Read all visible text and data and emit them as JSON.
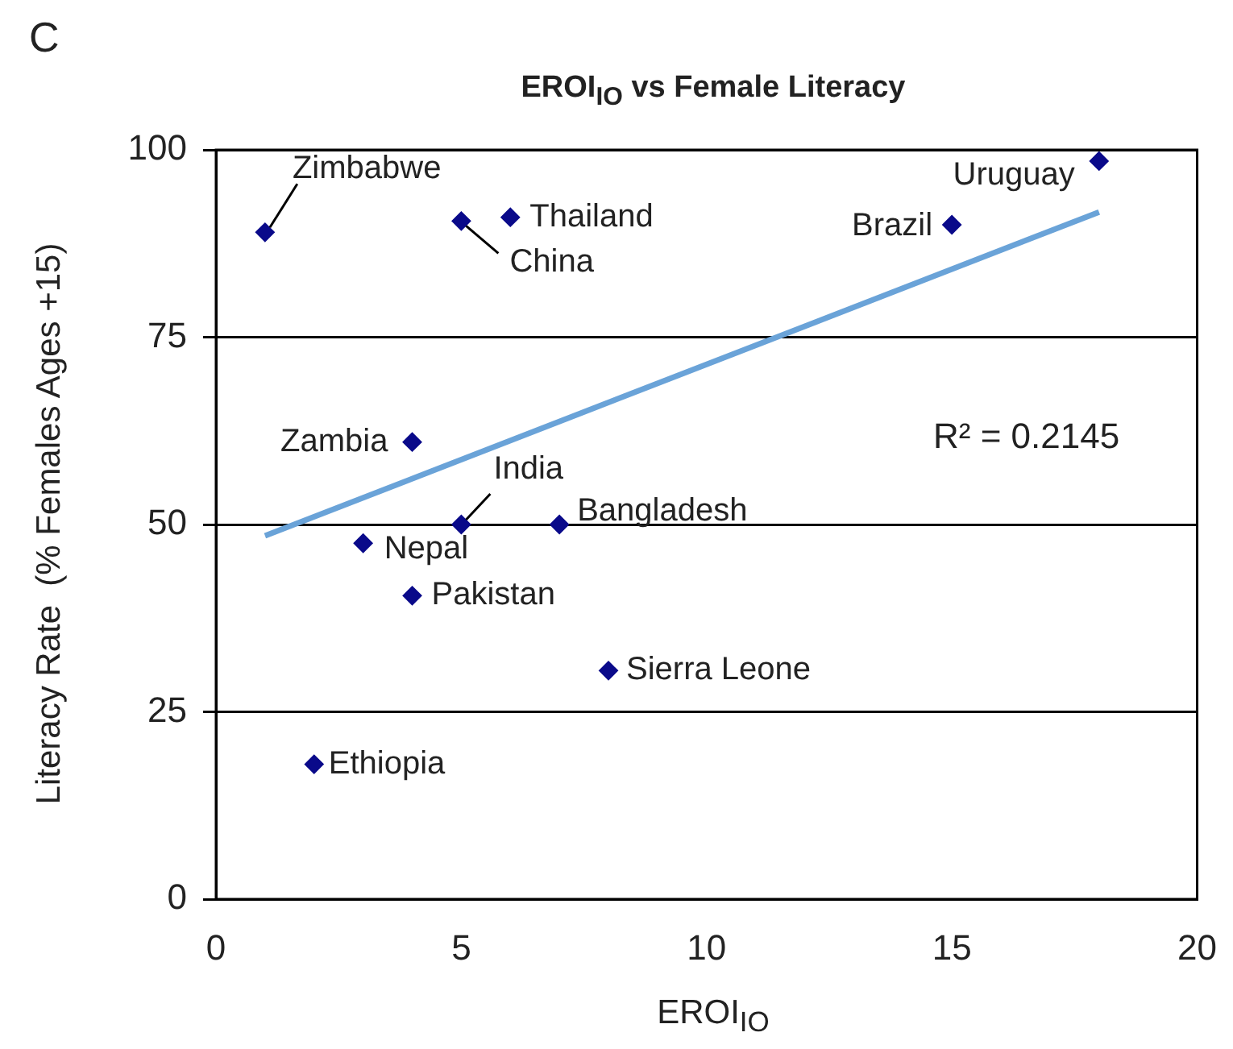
{
  "chart_data": {
    "type": "scatter",
    "title": "EROI$_{IO}$ vs Female Literacy",
    "xlabel": "EROI$_{IO}$",
    "ylabel": "Literacy Rate  (% Females Ages +15)",
    "xlim": [
      0,
      20
    ],
    "xticks": [
      0,
      5,
      10,
      15,
      20
    ],
    "ylim": [
      0,
      100
    ],
    "yticks": [
      0,
      25,
      50,
      75,
      100
    ],
    "grid": "y",
    "legend": false,
    "series": [
      {
        "type": "scatter",
        "marker": "diamond",
        "color": "#0a0a8a",
        "x": [
          1,
          5,
          6,
          18,
          15,
          4,
          5,
          7,
          3,
          4,
          8,
          2
        ],
        "values": [
          89,
          90.5,
          91,
          98.5,
          90,
          61,
          50,
          50,
          47.5,
          40.5,
          30.5,
          18
        ]
      },
      {
        "type": "line",
        "color": "#6aa3d8",
        "line_style": "solid",
        "x": [
          1,
          18
        ],
        "values": [
          48.5,
          91.7
        ]
      }
    ],
    "annotations": [
      "C",
      "R² = 0.2145",
      {
        "text": "Zimbabwe",
        "x": 1,
        "y": 89
      },
      {
        "text": "China",
        "x": 5,
        "y": 90.5
      },
      {
        "text": "Thailand",
        "x": 6,
        "y": 91
      },
      {
        "text": "Uruguay",
        "x": 18,
        "y": 98.5
      },
      {
        "text": "Brazil",
        "x": 15,
        "y": 90
      },
      {
        "text": "Zambia",
        "x": 4,
        "y": 61
      },
      {
        "text": "India",
        "x": 5,
        "y": 50
      },
      {
        "text": "Bangladesh",
        "x": 7,
        "y": 50
      },
      {
        "text": "Nepal",
        "x": 3,
        "y": 47.5
      },
      {
        "text": "Pakistan",
        "x": 4,
        "y": 40.5
      },
      {
        "text": "Sierra Leone",
        "x": 8,
        "y": 30.5
      },
      {
        "text": "Ethiopia",
        "x": 2,
        "y": 18
      }
    ]
  }
}
